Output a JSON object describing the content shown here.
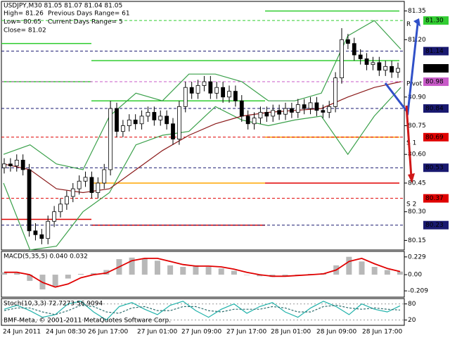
{
  "chart_data": [
    {
      "type": "candlestick",
      "title": "USDJPY,M30  81.05 81.07 81.04 81.05",
      "annotations": [
        "High= 81.26",
        "Previous Days Range= 61",
        "Low= 80.65",
        "Current Days Range= 5",
        "Close= 81.02"
      ],
      "open": [
        80.53,
        80.55,
        80.54,
        80.57,
        80.52,
        80.2,
        80.18,
        80.16,
        80.25,
        80.3,
        80.34,
        80.38,
        80.42,
        80.46,
        80.48,
        80.4,
        80.45,
        80.52,
        80.84,
        80.72,
        80.75,
        80.78,
        80.76,
        80.8,
        80.82,
        80.78,
        80.8,
        80.76,
        80.68,
        80.85,
        80.95,
        80.92,
        80.96,
        80.98,
        80.92,
        80.95,
        80.9,
        80.93,
        80.88,
        80.8,
        80.76,
        80.79,
        80.82,
        80.8,
        80.83,
        80.81,
        80.84,
        80.82,
        80.86,
        80.84,
        80.87,
        80.83,
        80.82,
        80.85,
        81.0,
        81.2,
        81.18,
        81.12,
        81.1,
        81.07,
        81.08,
        81.04,
        81.06,
        81.03
      ],
      "high": [
        80.58,
        80.58,
        80.6,
        80.6,
        80.55,
        80.24,
        80.21,
        80.28,
        80.33,
        80.37,
        80.41,
        80.45,
        80.49,
        80.51,
        80.51,
        80.48,
        80.55,
        80.88,
        80.87,
        80.78,
        80.81,
        80.81,
        80.83,
        80.85,
        80.85,
        80.83,
        80.83,
        80.79,
        80.88,
        80.98,
        80.98,
        80.99,
        81.01,
        81.01,
        80.98,
        80.98,
        80.96,
        80.96,
        80.91,
        80.83,
        80.82,
        80.85,
        80.85,
        80.86,
        80.86,
        80.87,
        80.87,
        80.89,
        80.89,
        80.9,
        80.9,
        80.86,
        80.88,
        81.03,
        81.26,
        81.23,
        81.21,
        81.15,
        81.13,
        81.11,
        81.11,
        81.09,
        81.09,
        81.08
      ],
      "low": [
        80.5,
        80.51,
        80.51,
        80.49,
        80.17,
        80.15,
        80.13,
        80.13,
        80.22,
        80.27,
        80.31,
        80.35,
        80.39,
        80.43,
        80.37,
        80.37,
        80.42,
        80.49,
        80.69,
        80.69,
        80.72,
        80.73,
        80.73,
        80.77,
        80.75,
        80.75,
        80.73,
        80.65,
        80.65,
        80.82,
        80.89,
        80.89,
        80.93,
        80.89,
        80.89,
        80.87,
        80.87,
        80.85,
        80.77,
        80.73,
        80.73,
        80.76,
        80.77,
        80.77,
        80.78,
        80.78,
        80.79,
        80.79,
        80.81,
        80.81,
        80.8,
        80.79,
        80.79,
        80.82,
        80.97,
        81.15,
        81.09,
        81.07,
        81.04,
        81.04,
        81.01,
        81.01,
        81.0,
        81.0
      ],
      "close": [
        80.55,
        80.54,
        80.57,
        80.52,
        80.2,
        80.18,
        80.16,
        80.25,
        80.3,
        80.34,
        80.38,
        80.42,
        80.46,
        80.48,
        80.4,
        80.45,
        80.52,
        80.84,
        80.72,
        80.75,
        80.78,
        80.76,
        80.8,
        80.82,
        80.78,
        80.8,
        80.76,
        80.68,
        80.85,
        80.95,
        80.92,
        80.96,
        80.98,
        80.92,
        80.95,
        80.9,
        80.93,
        80.88,
        80.8,
        80.76,
        80.79,
        80.82,
        80.8,
        80.83,
        80.81,
        80.84,
        80.82,
        80.86,
        80.84,
        80.87,
        80.83,
        80.82,
        80.85,
        81.0,
        81.2,
        81.18,
        81.12,
        81.1,
        81.07,
        81.08,
        81.04,
        81.06,
        81.03,
        81.05
      ],
      "color": "#000000",
      "overlays": [
        {
          "color": "#3aa04a",
          "values": [
            80.6,
            80.65,
            80.55,
            80.52,
            80.8,
            80.92,
            80.88,
            81.02,
            81.02,
            80.98,
            80.88,
            80.88,
            80.92,
            81.22,
            81.3,
            81.15
          ]
        },
        {
          "color": "#3aa04a",
          "values": [
            80.45,
            80.1,
            80.12,
            80.3,
            80.4,
            80.65,
            80.7,
            80.72,
            80.85,
            80.78,
            80.75,
            80.78,
            80.8,
            80.6,
            80.8,
            80.95
          ]
        },
        {
          "color": "#8b1a1a",
          "values": [
            80.55,
            80.52,
            80.42,
            80.4,
            80.42,
            80.52,
            80.62,
            80.7,
            80.76,
            80.8,
            80.82,
            80.83,
            80.84,
            80.9,
            80.95,
            80.98
          ]
        }
      ],
      "pivots": [
        {
          "color": "#32cd32",
          "values": [
            81.18,
            81.09,
            81.35
          ]
        },
        {
          "color": "#32cd32",
          "values": [
            80.98,
            80.88,
            81.09
          ]
        },
        {
          "color": "#ffa500",
          "values": [
            null,
            80.45,
            80.69
          ]
        },
        {
          "color": "#e00000",
          "values": [
            80.26,
            80.23,
            80.45
          ]
        }
      ],
      "pivot_labels": [
        {
          "label": "R",
          "value": 81.28,
          "color": "#ffa500"
        },
        {
          "label": "Pivot",
          "value": 80.97,
          "color": "#ffa500"
        },
        {
          "label": "S 1",
          "value": 80.66,
          "color": "#ffa500"
        },
        {
          "label": "S 2",
          "value": 80.34,
          "color": "#ffa500"
        }
      ],
      "levels": [
        {
          "value": 81.3,
          "label": "81.30",
          "color": "#32cd32"
        },
        {
          "value": 81.14,
          "color": "#191970"
        },
        {
          "value": 80.98,
          "color": "#c85ac8"
        },
        {
          "value": 80.84,
          "color": "#191970"
        },
        {
          "value": 80.69,
          "color": "#e00000"
        },
        {
          "value": 80.53,
          "color": "#191970"
        },
        {
          "value": 80.37,
          "color": "#e00000"
        },
        {
          "value": 80.23,
          "color": "#191970"
        }
      ],
      "last_price": 81.05,
      "ylim": [
        80.1,
        81.4
      ],
      "yticks": [
        81.35,
        {
          "value": 81.2,
          "label": "81.20"
        },
        {
          "value": 80.9,
          "label": "80.90"
        },
        80.75,
        {
          "value": 80.6,
          "label": "80.60"
        },
        80.45,
        {
          "value": 80.3,
          "label": "80.30"
        },
        80.15
      ],
      "x_labels": [
        "24 Jun 2011",
        "24 Jun 08:30",
        "26 Jun 17:00",
        "27 Jun 01:00",
        "27 Jun 09:00",
        "27 Jun 17:00",
        "28 Jun 01:00",
        "28 Jun 09:00",
        "28 Jun 17:00"
      ]
    },
    {
      "type": "macd",
      "title": "MACD(5,35,5) 0.040 0.032",
      "histogram": {
        "color": "#b8b8b8",
        "values": [
          0.03,
          0.02,
          -0.08,
          -0.19,
          -0.15,
          -0.05,
          0.01,
          0.02,
          0.06,
          0.2,
          0.22,
          0.21,
          0.18,
          0.12,
          0.1,
          0.12,
          0.1,
          0.08,
          0.05,
          0.0,
          -0.02,
          -0.03,
          -0.02,
          0.0,
          0.01,
          0.02,
          0.12,
          0.23,
          0.17,
          0.1,
          0.06,
          0.04
        ]
      },
      "signal": {
        "color": "#e00000",
        "values": [
          0.03,
          0.03,
          0.0,
          -0.1,
          -0.16,
          -0.12,
          -0.04,
          0.0,
          0.02,
          0.1,
          0.18,
          0.21,
          0.21,
          0.17,
          0.13,
          0.11,
          0.11,
          0.1,
          0.07,
          0.03,
          0.0,
          -0.02,
          -0.02,
          -0.01,
          0.0,
          0.01,
          0.06,
          0.17,
          0.21,
          0.14,
          0.08,
          0.04
        ]
      },
      "ylim": [
        -0.29,
        0.3
      ],
      "yticks": [
        0.229,
        {
          "value": 0,
          "label": "0.00"
        },
        -0.209
      ]
    },
    {
      "type": "stochastic",
      "title": "Stoch(10,3,3) 72.7273 56.9094",
      "note": "BMF-Meta, © 2001-2011 MetaQuotes Software Corp.",
      "main": {
        "color": "#20b2aa",
        "values": [
          60,
          75,
          55,
          30,
          40,
          80,
          90,
          50,
          20,
          70,
          85,
          60,
          40,
          75,
          90,
          55,
          30,
          60,
          80,
          45,
          70,
          85,
          50,
          30,
          65,
          90,
          70,
          40,
          80,
          60,
          50,
          73
        ]
      },
      "signal": {
        "color": "#2f6f6f",
        "values": [
          55,
          65,
          65,
          50,
          40,
          55,
          75,
          70,
          50,
          45,
          65,
          70,
          55,
          55,
          70,
          70,
          55,
          50,
          60,
          60,
          60,
          70,
          65,
          50,
          50,
          70,
          75,
          65,
          60,
          65,
          60,
          57
        ]
      },
      "ylim": [
        0,
        100
      ],
      "yticks": [
        80,
        20
      ]
    }
  ]
}
